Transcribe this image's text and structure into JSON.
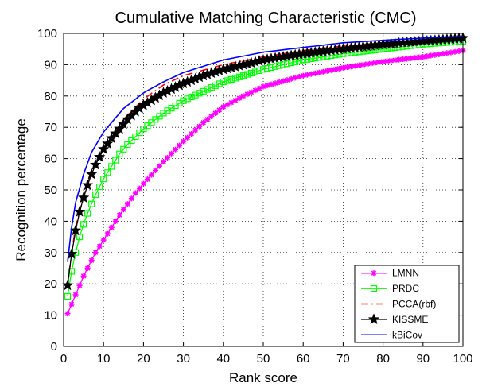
{
  "chart_data": {
    "type": "line",
    "title": "Cumulative Matching Characteristic (CMC)",
    "xlabel": "Rank score",
    "ylabel": "Recognition percentage",
    "xlim": [
      0,
      100
    ],
    "ylim": [
      0,
      100
    ],
    "xticks": [
      0,
      10,
      20,
      30,
      40,
      50,
      60,
      70,
      80,
      90,
      100
    ],
    "yticks": [
      0,
      10,
      20,
      30,
      40,
      50,
      60,
      70,
      80,
      90,
      100
    ],
    "grid": true,
    "legend_position": "bottom-right",
    "series": [
      {
        "name": "LMNN",
        "color": "#ff00ff",
        "marker": "asterisk",
        "line": "solid",
        "anchor_ranks": [
          1,
          2,
          3,
          4,
          5,
          6,
          7,
          8,
          9,
          10,
          12,
          14,
          16,
          18,
          20,
          25,
          30,
          35,
          40,
          45,
          50,
          60,
          70,
          80,
          90,
          100
        ],
        "anchor_values": [
          10.5,
          13.5,
          16.5,
          19.5,
          22.5,
          25,
          27.5,
          30,
          32,
          34,
          38,
          42,
          45.5,
          49,
          52,
          59,
          65.5,
          71.5,
          76.5,
          80,
          83,
          86.5,
          89,
          91,
          92.5,
          94.5
        ]
      },
      {
        "name": "PRDC",
        "color": "#00ff00",
        "marker": "square",
        "line": "solid",
        "anchor_ranks": [
          1,
          2,
          3,
          4,
          5,
          6,
          7,
          8,
          9,
          10,
          12,
          14,
          16,
          18,
          20,
          25,
          30,
          35,
          40,
          45,
          50,
          60,
          70,
          80,
          90,
          100
        ],
        "anchor_values": [
          16,
          24,
          30,
          35,
          39,
          42.5,
          45.5,
          48.5,
          51,
          53.5,
          57.5,
          61.5,
          64.5,
          67,
          69.5,
          74.5,
          78.5,
          81.5,
          84.5,
          86.5,
          88.5,
          91.5,
          93.5,
          95,
          96.5,
          97.5
        ]
      },
      {
        "name": "PCCA(rbf)",
        "color": "#ff0000",
        "marker": "none",
        "line": "dashdot",
        "anchor_ranks": [
          1,
          2,
          3,
          5,
          7,
          10,
          15,
          20,
          25,
          30,
          40,
          50,
          60,
          70,
          80,
          90,
          100
        ],
        "anchor_values": [
          19,
          30,
          38,
          48,
          56,
          63,
          72.5,
          79,
          83.5,
          86.5,
          90,
          92.5,
          94.5,
          96,
          97,
          97.5,
          98.5
        ]
      },
      {
        "name": "KISSME",
        "color": "#000000",
        "marker": "star",
        "line": "solid",
        "anchor_ranks": [
          1,
          2,
          3,
          4,
          5,
          6,
          7,
          8,
          9,
          10,
          12,
          14,
          16,
          18,
          20,
          25,
          30,
          35,
          40,
          45,
          50,
          60,
          70,
          80,
          90,
          100
        ],
        "anchor_values": [
          19.5,
          29.5,
          37,
          43,
          47.5,
          51.5,
          55,
          58,
          60.5,
          63,
          66.5,
          69.5,
          72.5,
          75,
          77,
          81,
          84,
          86.5,
          88.5,
          90,
          91.5,
          93.5,
          95,
          96.5,
          97.5,
          98.5
        ]
      },
      {
        "name": "kBiCov",
        "color": "#0000ff",
        "marker": "none",
        "line": "solid",
        "anchor_ranks": [
          1,
          2,
          3,
          5,
          7,
          10,
          15,
          20,
          25,
          30,
          40,
          50,
          60,
          70,
          80,
          90,
          100
        ],
        "anchor_values": [
          27,
          38,
          46,
          55,
          62,
          68.5,
          76,
          81,
          84.5,
          87.5,
          91.5,
          94,
          95.5,
          97,
          97.8,
          98.5,
          99
        ]
      }
    ]
  }
}
